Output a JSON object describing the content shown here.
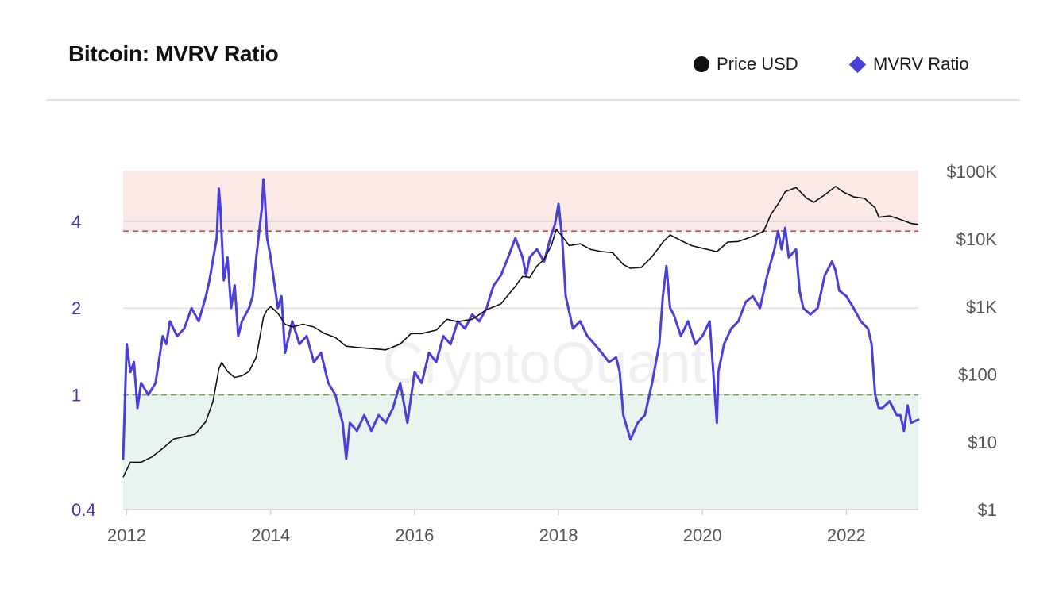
{
  "colors": {
    "price": "#111111",
    "mvrv": "#4a3fd8",
    "zone_high": "#fbe9e7",
    "zone_low": "#eaf4ee",
    "line_high": "#c0504d",
    "line_low": "#6aa84f",
    "axis_left": "#3d37b4",
    "axis_right": "#555555",
    "grid": "#d9d9de"
  },
  "chart_data": {
    "type": "line",
    "title": "Bitcoin: MVRV Ratio",
    "watermark": "CryptoQuant",
    "legend": [
      {
        "name": "Price USD",
        "marker": "circle",
        "color": "#111111"
      },
      {
        "name": "MVRV Ratio",
        "marker": "diamond",
        "color": "#4a3fd8"
      }
    ],
    "x_range": [
      2011.95,
      2023.0
    ],
    "x_ticks": [
      2012,
      2014,
      2016,
      2018,
      2020,
      2022
    ],
    "x_tick_labels": [
      "2012",
      "2014",
      "2016",
      "2018",
      "2020",
      "2022"
    ],
    "y_left": {
      "scale": "log",
      "range": [
        0.4,
        6.0
      ],
      "ticks": [
        0.4,
        1,
        2,
        4
      ],
      "tick_labels": [
        "0.4",
        "1",
        "2",
        "4"
      ]
    },
    "y_right": {
      "scale": "log",
      "range": [
        1,
        100000
      ],
      "ticks": [
        1,
        10,
        100,
        1000,
        10000,
        100000
      ],
      "tick_labels": [
        "$1",
        "$10",
        "$100",
        "$1K",
        "$10K",
        "$100K"
      ]
    },
    "zones": {
      "high_band": [
        3.7,
        6.0
      ],
      "low_band": [
        0.4,
        1.0
      ]
    },
    "reference_lines": [
      {
        "axis": "left",
        "value": 3.7,
        "style": "dashed",
        "color": "#c0504d"
      },
      {
        "axis": "left",
        "value": 1.0,
        "style": "dashed",
        "color": "#6aa84f"
      }
    ],
    "series": [
      {
        "name": "Price USD",
        "axis": "right",
        "x": [
          2011.95,
          2012.05,
          2012.2,
          2012.35,
          2012.5,
          2012.65,
          2012.8,
          2012.95,
          2013.1,
          2013.2,
          2013.28,
          2013.32,
          2013.4,
          2013.5,
          2013.6,
          2013.7,
          2013.8,
          2013.9,
          2013.95,
          2014.0,
          2014.1,
          2014.2,
          2014.3,
          2014.45,
          2014.6,
          2014.75,
          2014.9,
          2015.05,
          2015.2,
          2015.4,
          2015.6,
          2015.8,
          2015.95,
          2016.1,
          2016.3,
          2016.45,
          2016.6,
          2016.8,
          2017.0,
          2017.2,
          2017.4,
          2017.5,
          2017.6,
          2017.7,
          2017.8,
          2017.9,
          2017.97,
          2018.05,
          2018.15,
          2018.3,
          2018.45,
          2018.6,
          2018.75,
          2018.9,
          2019.0,
          2019.15,
          2019.3,
          2019.45,
          2019.55,
          2019.7,
          2019.85,
          2020.0,
          2020.2,
          2020.35,
          2020.5,
          2020.7,
          2020.85,
          2020.95,
          2021.05,
          2021.15,
          2021.3,
          2021.45,
          2021.55,
          2021.7,
          2021.85,
          2021.95,
          2022.1,
          2022.25,
          2022.4,
          2022.45,
          2022.6,
          2022.75,
          2022.9,
          2023.0
        ],
        "values": [
          3,
          5,
          5,
          6,
          8,
          11,
          12,
          13,
          20,
          40,
          120,
          150,
          110,
          90,
          95,
          110,
          180,
          700,
          900,
          1000,
          800,
          550,
          500,
          550,
          500,
          400,
          350,
          260,
          250,
          240,
          230,
          280,
          400,
          400,
          450,
          650,
          600,
          650,
          900,
          1100,
          2000,
          2800,
          2700,
          4000,
          5000,
          8000,
          14000,
          11000,
          8000,
          8500,
          7000,
          6500,
          6300,
          4200,
          3700,
          3800,
          5500,
          9000,
          11500,
          9500,
          8000,
          7300,
          6500,
          9000,
          9200,
          11000,
          13000,
          23000,
          33000,
          50000,
          58000,
          40000,
          35000,
          45000,
          60000,
          50000,
          42000,
          40000,
          29000,
          21000,
          22000,
          19500,
          17000,
          16500
        ]
      },
      {
        "name": "MVRV Ratio",
        "axis": "left",
        "x": [
          2011.95,
          2012.0,
          2012.05,
          2012.1,
          2012.15,
          2012.2,
          2012.3,
          2012.4,
          2012.5,
          2012.55,
          2012.6,
          2012.7,
          2012.8,
          2012.9,
          2013.0,
          2013.1,
          2013.15,
          2013.25,
          2013.28,
          2013.3,
          2013.35,
          2013.4,
          2013.45,
          2013.5,
          2013.55,
          2013.6,
          2013.7,
          2013.75,
          2013.8,
          2013.88,
          2013.9,
          2013.92,
          2013.95,
          2014.0,
          2014.1,
          2014.15,
          2014.2,
          2014.3,
          2014.4,
          2014.5,
          2014.6,
          2014.7,
          2014.8,
          2014.9,
          2015.0,
          2015.05,
          2015.1,
          2015.2,
          2015.3,
          2015.4,
          2015.5,
          2015.6,
          2015.7,
          2015.8,
          2015.9,
          2016.0,
          2016.1,
          2016.2,
          2016.3,
          2016.4,
          2016.5,
          2016.6,
          2016.7,
          2016.8,
          2016.9,
          2017.0,
          2017.05,
          2017.1,
          2017.2,
          2017.3,
          2017.4,
          2017.5,
          2017.55,
          2017.6,
          2017.7,
          2017.8,
          2017.9,
          2017.95,
          2018.0,
          2018.05,
          2018.1,
          2018.2,
          2018.3,
          2018.4,
          2018.5,
          2018.6,
          2018.7,
          2018.8,
          2018.85,
          2018.9,
          2019.0,
          2019.1,
          2019.2,
          2019.3,
          2019.4,
          2019.45,
          2019.5,
          2019.55,
          2019.6,
          2019.7,
          2019.8,
          2019.9,
          2020.0,
          2020.1,
          2020.2,
          2020.22,
          2020.3,
          2020.4,
          2020.5,
          2020.6,
          2020.7,
          2020.8,
          2020.9,
          2021.0,
          2021.05,
          2021.1,
          2021.15,
          2021.2,
          2021.3,
          2021.35,
          2021.4,
          2021.5,
          2021.6,
          2021.7,
          2021.8,
          2021.85,
          2021.9,
          2022.0,
          2022.1,
          2022.2,
          2022.3,
          2022.35,
          2022.4,
          2022.45,
          2022.5,
          2022.6,
          2022.7,
          2022.75,
          2022.8,
          2022.85,
          2022.9,
          2023.0
        ],
        "values": [
          0.6,
          1.5,
          1.2,
          1.3,
          0.9,
          1.1,
          1.0,
          1.1,
          1.6,
          1.5,
          1.8,
          1.6,
          1.7,
          2.0,
          1.8,
          2.2,
          2.5,
          3.5,
          5.2,
          4.5,
          2.5,
          3.0,
          2.0,
          2.4,
          1.6,
          1.8,
          2.0,
          2.2,
          3.0,
          4.5,
          5.6,
          4.8,
          3.5,
          3.0,
          2.0,
          2.2,
          1.4,
          1.8,
          1.5,
          1.6,
          1.3,
          1.4,
          1.1,
          1.0,
          0.8,
          0.6,
          0.8,
          0.75,
          0.85,
          0.75,
          0.85,
          0.8,
          0.9,
          1.1,
          0.8,
          1.2,
          1.1,
          1.4,
          1.3,
          1.6,
          1.5,
          1.8,
          1.7,
          1.9,
          1.8,
          2.0,
          2.2,
          2.4,
          2.6,
          3.0,
          3.5,
          3.0,
          2.6,
          3.0,
          3.2,
          2.9,
          3.6,
          3.9,
          4.6,
          3.5,
          2.2,
          1.7,
          1.8,
          1.6,
          1.5,
          1.4,
          1.3,
          1.35,
          1.2,
          0.85,
          0.7,
          0.8,
          0.85,
          1.1,
          1.5,
          2.2,
          2.8,
          2.0,
          1.9,
          1.6,
          1.8,
          1.5,
          1.6,
          1.8,
          0.8,
          1.2,
          1.5,
          1.7,
          1.8,
          2.1,
          2.2,
          2.0,
          2.6,
          3.2,
          3.7,
          3.2,
          3.8,
          3.0,
          3.2,
          2.3,
          2.0,
          1.9,
          2.0,
          2.6,
          2.9,
          2.7,
          2.3,
          2.2,
          2.0,
          1.8,
          1.7,
          1.5,
          1.0,
          0.9,
          0.9,
          0.95,
          0.85,
          0.85,
          0.75,
          0.92,
          0.8,
          0.82
        ]
      }
    ]
  }
}
